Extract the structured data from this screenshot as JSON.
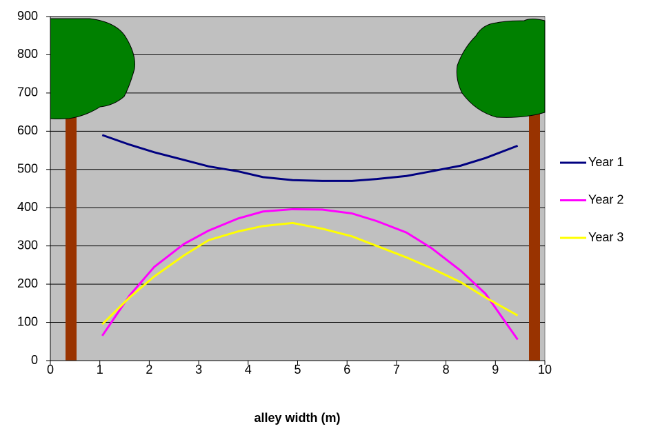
{
  "chart_data": {
    "type": "line",
    "x_label": "alley width (m)",
    "x": [
      1.05,
      1.6,
      2.1,
      2.7,
      3.2,
      3.8,
      4.3,
      4.9,
      5.5,
      6.1,
      6.6,
      7.2,
      7.7,
      8.3,
      8.8,
      9.45
    ],
    "series": [
      {
        "name": "Year 1",
        "color": "#000080",
        "values": [
          590,
          565,
          545,
          525,
          508,
          495,
          480,
          472,
          470,
          470,
          475,
          483,
          495,
          510,
          530,
          562
        ]
      },
      {
        "name": "Year 2",
        "color": "#ff00ff",
        "values": [
          65,
          170,
          245,
          305,
          340,
          372,
          390,
          396,
          395,
          385,
          365,
          335,
          295,
          235,
          175,
          55
        ]
      },
      {
        "name": "Year 3",
        "color": "#ffff00",
        "values": [
          95,
          165,
          220,
          275,
          315,
          338,
          352,
          360,
          345,
          325,
          300,
          270,
          242,
          205,
          165,
          118
        ]
      }
    ],
    "xlim": [
      0,
      10
    ],
    "xticks": [
      0,
      1,
      2,
      3,
      4,
      5,
      6,
      7,
      8,
      9,
      10
    ],
    "ylim": [
      0,
      900
    ],
    "yticks": [
      0,
      100,
      200,
      300,
      400,
      500,
      600,
      700,
      800,
      900
    ],
    "grid": true,
    "legend": "right",
    "plot_background": "#c0c0c0"
  }
}
